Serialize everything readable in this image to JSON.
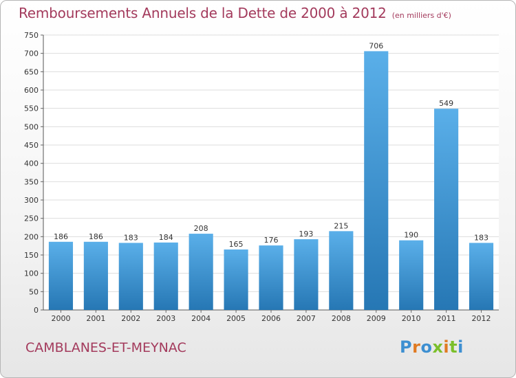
{
  "header": {
    "title": "Remboursements Annuels de la Dette de 2000 à 2012",
    "unit": "(en milliers d'€)"
  },
  "footer": {
    "commune": "CAMBLANES-ET-MEYNAC",
    "logo_letters": [
      "P",
      "r",
      "o",
      "x",
      "i",
      "t",
      "i"
    ]
  },
  "colors": {
    "title": "#a33a5c",
    "bar_top": "#5aafe9",
    "bar_bottom": "#2677b4",
    "logo": [
      "#3d8fd1",
      "#e07a22",
      "#3d8fd1",
      "#7bbf2b",
      "#e07a22",
      "#7bbf2b",
      "#3d8fd1"
    ]
  },
  "chart_data": {
    "type": "bar",
    "title": "Remboursements Annuels de la Dette de 2000 à 2012",
    "xlabel": "",
    "ylabel": "",
    "categories": [
      "2000",
      "2001",
      "2002",
      "2003",
      "2004",
      "2005",
      "2006",
      "2007",
      "2008",
      "2009",
      "2010",
      "2011",
      "2012"
    ],
    "values": [
      186,
      186,
      183,
      184,
      208,
      165,
      176,
      193,
      215,
      706,
      190,
      549,
      183
    ],
    "ylim": [
      0,
      750
    ],
    "yticks": [
      0,
      50,
      100,
      150,
      200,
      250,
      300,
      350,
      400,
      450,
      500,
      550,
      600,
      650,
      700,
      750
    ],
    "grid": true
  }
}
